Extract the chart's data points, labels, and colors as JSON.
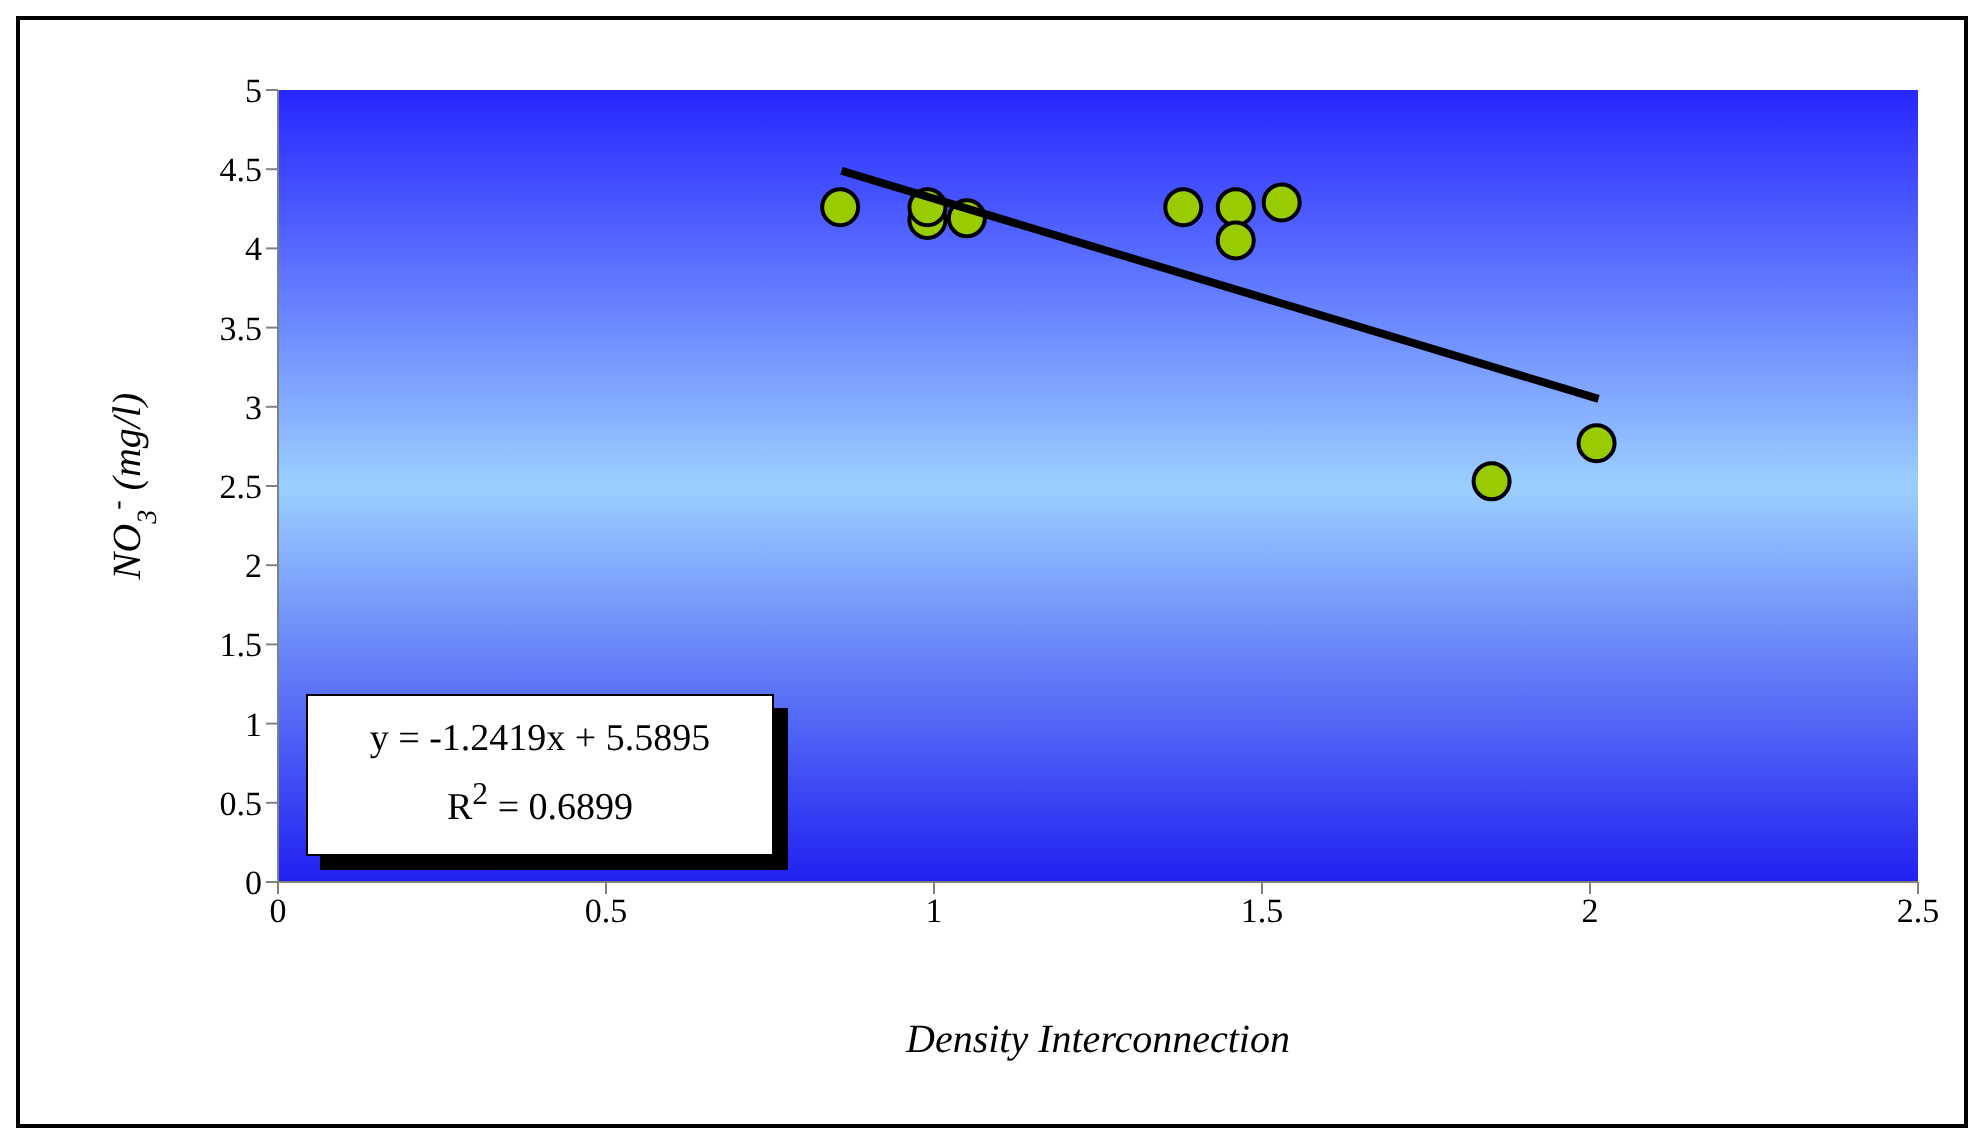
{
  "chart_data": {
    "type": "scatter",
    "xlabel": "Density Interconnection",
    "ylabel": "NO$_{3}$$^{-}$ (mg/l)",
    "xlim": [
      0,
      2.5
    ],
    "xticks": [
      0,
      0.5,
      1,
      1.5,
      2,
      2.5
    ],
    "ylim": [
      0,
      5
    ],
    "yticks": [
      0,
      0.5,
      1,
      1.5,
      2,
      2.5,
      3,
      3.5,
      4,
      4.5,
      5
    ],
    "grid": false,
    "legend": false,
    "series": [
      {
        "color": "#99cc00",
        "marker": "circle",
        "x": [
          0.857,
          0.99,
          0.99,
          1.05,
          1.38,
          1.46,
          1.46,
          1.53,
          1.85,
          2.01
        ],
        "values": [
          4.26,
          4.18,
          4.26,
          4.19,
          4.26,
          4.26,
          4.05,
          4.29,
          2.53,
          2.77
        ]
      },
      {
        "type": "line",
        "color": "#000000",
        "marker": "none",
        "x": [
          0.859,
          2.013
        ],
        "values": [
          4.49,
          3.05
        ]
      }
    ],
    "annotations": [
      "y = -1.2419x + 5.5895",
      "R$^{2}$ = 0.6899"
    ]
  }
}
